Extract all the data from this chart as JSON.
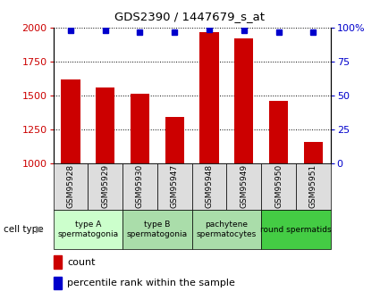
{
  "title": "GDS2390 / 1447679_s_at",
  "samples": [
    "GSM95928",
    "GSM95929",
    "GSM95930",
    "GSM95947",
    "GSM95948",
    "GSM95949",
    "GSM95950",
    "GSM95951"
  ],
  "counts": [
    1620,
    1560,
    1510,
    1340,
    1970,
    1920,
    1460,
    1160
  ],
  "percentiles": [
    98,
    98,
    97,
    97,
    99,
    98,
    97,
    97
  ],
  "ylim_left": [
    1000,
    2000
  ],
  "ylim_right": [
    0,
    100
  ],
  "yticks_left": [
    1000,
    1250,
    1500,
    1750,
    2000
  ],
  "yticks_right": [
    0,
    25,
    50,
    75,
    100
  ],
  "bar_color": "#cc0000",
  "dot_color": "#0000cc",
  "bar_width": 0.55,
  "group_defs": [
    {
      "label": "type A\nspermatogonia",
      "start": 0,
      "end": 2,
      "color": "#ccffcc"
    },
    {
      "label": "type B\nspermatogonia",
      "start": 2,
      "end": 4,
      "color": "#aaddaa"
    },
    {
      "label": "pachytene\nspermatocytes",
      "start": 4,
      "end": 6,
      "color": "#aaddaa"
    },
    {
      "label": "round spermatids",
      "start": 6,
      "end": 8,
      "color": "#44cc44"
    }
  ],
  "sample_box_color": "#dddddd",
  "legend_count_color": "#cc0000",
  "legend_pct_color": "#0000cc",
  "bg_color": "#ffffff"
}
